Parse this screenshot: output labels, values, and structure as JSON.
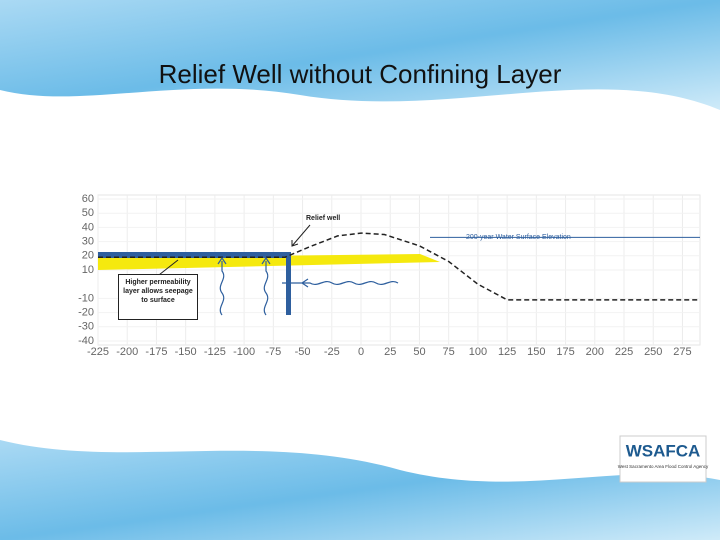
{
  "header": {
    "title": "Relief Well without Confining Layer"
  },
  "chart_data": {
    "type": "line",
    "x": [
      -225,
      -65,
      -45,
      -20,
      0,
      20,
      50,
      75,
      100,
      125,
      150,
      290
    ],
    "series": [
      {
        "color": "#222222",
        "values": [
          19,
          19,
          26,
          34,
          36,
          35,
          27,
          16,
          0,
          -11,
          -11,
          -11
        ]
      }
    ],
    "xlim": [
      -225,
      290
    ],
    "ylim": [
      -40,
      60
    ],
    "xticks": [
      -225,
      -200,
      -175,
      -150,
      -125,
      -100,
      -75,
      -50,
      -25,
      0,
      25,
      50,
      75,
      100,
      125,
      150,
      175,
      200,
      225,
      250,
      275
    ],
    "yticks": [
      60,
      50,
      40,
      30,
      20,
      10,
      -10,
      -20,
      -30,
      -40
    ],
    "grid": true,
    "water_level": 33,
    "water_color": "#2e5f9e",
    "annotations": {
      "relief_well": "Relief well",
      "water_surface": "200-year Water Surface Elevation",
      "seepage": "Higher permeability layer allows seepage to surface"
    }
  },
  "logo": {
    "name": "WSAFCA",
    "subtitle": "West Sacramento Area Flood Control Agency"
  }
}
